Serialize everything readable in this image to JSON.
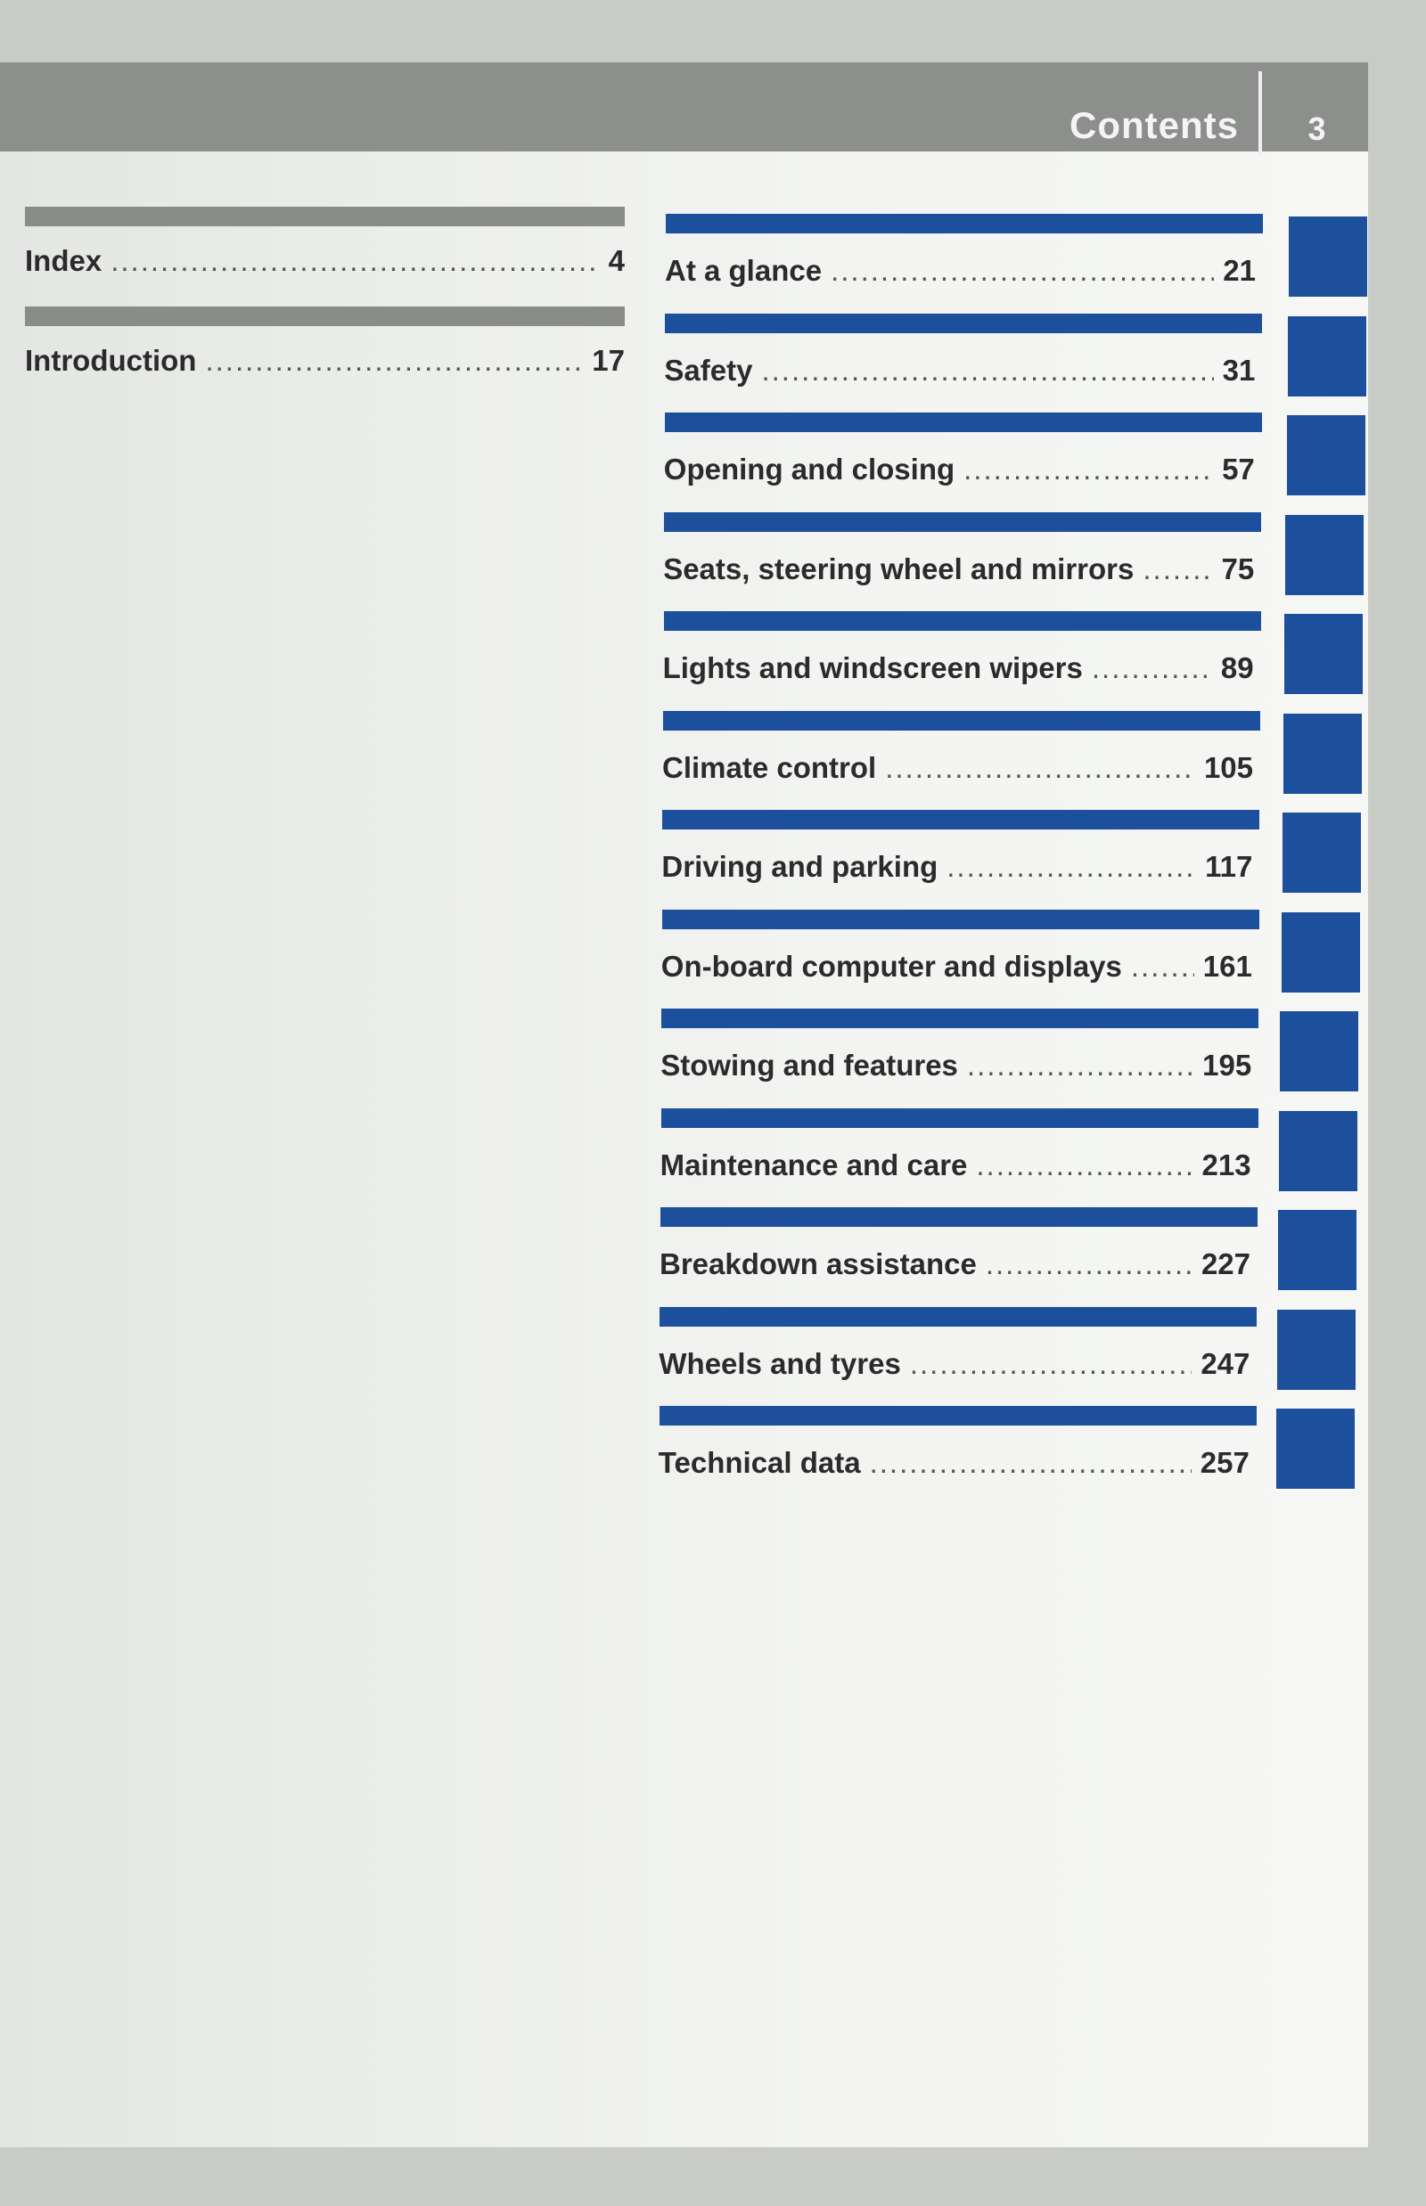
{
  "header": {
    "title": "Contents",
    "page_number": "3"
  },
  "left_entries": [
    {
      "label": "Index",
      "page": "4"
    },
    {
      "label": "Introduction",
      "page": "17"
    }
  ],
  "right_entries": [
    {
      "label": "At a glance",
      "page": "21"
    },
    {
      "label": "Safety",
      "page": "31"
    },
    {
      "label": "Opening and closing",
      "page": "57"
    },
    {
      "label": "Seats, steering wheel and mirrors",
      "page": "75"
    },
    {
      "label": "Lights and windscreen wipers",
      "page": "89"
    },
    {
      "label": "Climate control",
      "page": "105"
    },
    {
      "label": "Driving and parking",
      "page": "117"
    },
    {
      "label": "On-board computer and displays",
      "page": "161"
    },
    {
      "label": "Stowing and features",
      "page": "195"
    },
    {
      "label": "Maintenance and care",
      "page": "213"
    },
    {
      "label": "Breakdown assistance",
      "page": "227"
    },
    {
      "label": "Wheels and tyres",
      "page": "247"
    },
    {
      "label": "Technical data",
      "page": "257"
    }
  ],
  "colors": {
    "accent": "#1c4f9c",
    "header": "#8d8f8d",
    "divider": "#8a8c8a"
  }
}
